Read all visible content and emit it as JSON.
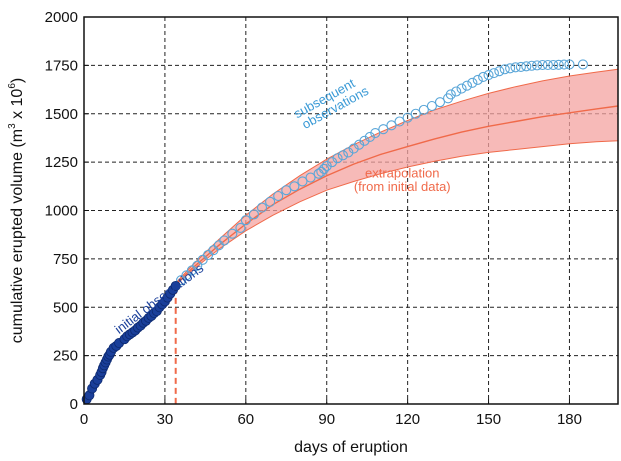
{
  "chart_data": {
    "type": "scatter",
    "xlabel": "days of eruption",
    "ylabel_main": "cumulative erupted volume (m",
    "ylabel_sup": "3",
    "ylabel_mid": " x 10",
    "ylabel_exp": "6",
    "ylabel_end": ")",
    "xlim": [
      0,
      198
    ],
    "ylim": [
      0,
      2000
    ],
    "xticks": [
      "0",
      "30",
      "60",
      "90",
      "120",
      "150",
      "180"
    ],
    "yticks": [
      "0",
      "250",
      "500",
      "750",
      "1000",
      "1250",
      "1500",
      "1750",
      "2000"
    ],
    "grid": true,
    "colors": {
      "initial": "#1a3f9a",
      "subsequent": "#5aa6d8",
      "extrapolation": "#f06a4a",
      "band": "#f4a3a0",
      "cutoff": "#f06a4a"
    },
    "annotations": {
      "initial": "initial observations",
      "subsequent_1": "subsequent",
      "subsequent_2": "observations",
      "extrap_1": "extrapolation",
      "extrap_2": "(from initial data)"
    },
    "cutoff_day": 34,
    "series": [
      {
        "key": "initial",
        "x": [
          1,
          2,
          3,
          4,
          5,
          6,
          6.5,
          7,
          7.5,
          8,
          8.5,
          9,
          9.5,
          10,
          11,
          12,
          13,
          15,
          16,
          17,
          18,
          19,
          20,
          21,
          22,
          23,
          24,
          25,
          26,
          27,
          28,
          29,
          30,
          31,
          32,
          33,
          34
        ],
        "y": [
          25,
          45,
          80,
          105,
          125,
          150,
          165,
          185,
          200,
          215,
          230,
          245,
          255,
          270,
          290,
          300,
          315,
          335,
          350,
          360,
          370,
          380,
          395,
          405,
          420,
          430,
          445,
          455,
          470,
          480,
          500,
          515,
          530,
          550,
          570,
          590,
          610
        ]
      },
      {
        "key": "subsequent",
        "x": [
          36,
          38,
          40,
          42,
          44,
          46,
          48,
          50,
          52,
          55,
          58,
          60,
          63,
          66,
          69,
          72,
          75,
          78,
          81,
          84,
          87,
          88,
          89,
          90,
          92,
          94,
          96,
          98,
          100,
          102,
          104,
          106,
          108,
          111,
          114,
          117,
          120,
          123,
          126,
          129,
          132,
          135,
          136,
          138,
          140,
          142,
          144,
          146,
          148,
          150,
          152,
          154,
          156,
          158,
          160,
          162,
          164,
          166,
          168,
          170,
          172,
          174,
          176,
          178,
          180,
          185
        ],
        "y": [
          640,
          665,
          690,
          715,
          745,
          770,
          795,
          820,
          845,
          880,
          910,
          950,
          980,
          1015,
          1045,
          1075,
          1105,
          1125,
          1150,
          1170,
          1190,
          1200,
          1215,
          1230,
          1250,
          1270,
          1285,
          1300,
          1320,
          1340,
          1360,
          1380,
          1400,
          1420,
          1440,
          1460,
          1480,
          1500,
          1520,
          1540,
          1560,
          1580,
          1600,
          1615,
          1630,
          1645,
          1660,
          1675,
          1690,
          1700,
          1710,
          1720,
          1730,
          1735,
          1740,
          1742,
          1745,
          1748,
          1750,
          1752,
          1752,
          1752,
          1753,
          1754,
          1755,
          1755
        ]
      },
      {
        "key": "extrapolation",
        "x": [
          34,
          40,
          50,
          60,
          70,
          80,
          90,
          100,
          110,
          120,
          130,
          140,
          150,
          160,
          170,
          180,
          190,
          198
        ],
        "y": [
          620,
          700,
          820,
          930,
          1030,
          1110,
          1180,
          1240,
          1290,
          1330,
          1370,
          1405,
          1435,
          1460,
          1485,
          1505,
          1525,
          1540
        ]
      },
      {
        "key": "band_upper",
        "x": [
          34,
          40,
          50,
          60,
          70,
          80,
          90,
          100,
          110,
          120,
          130,
          140,
          150,
          160,
          170,
          180,
          190,
          198
        ],
        "y": [
          625,
          715,
          850,
          975,
          1085,
          1180,
          1265,
          1340,
          1405,
          1465,
          1520,
          1565,
          1605,
          1640,
          1670,
          1695,
          1715,
          1730
        ]
      },
      {
        "key": "band_lower",
        "x": [
          34,
          40,
          50,
          60,
          70,
          80,
          90,
          100,
          110,
          120,
          130,
          140,
          150,
          160,
          170,
          180,
          190,
          198
        ],
        "y": [
          615,
          690,
          800,
          895,
          975,
          1045,
          1105,
          1150,
          1190,
          1225,
          1255,
          1280,
          1300,
          1315,
          1330,
          1345,
          1355,
          1360
        ]
      }
    ]
  }
}
